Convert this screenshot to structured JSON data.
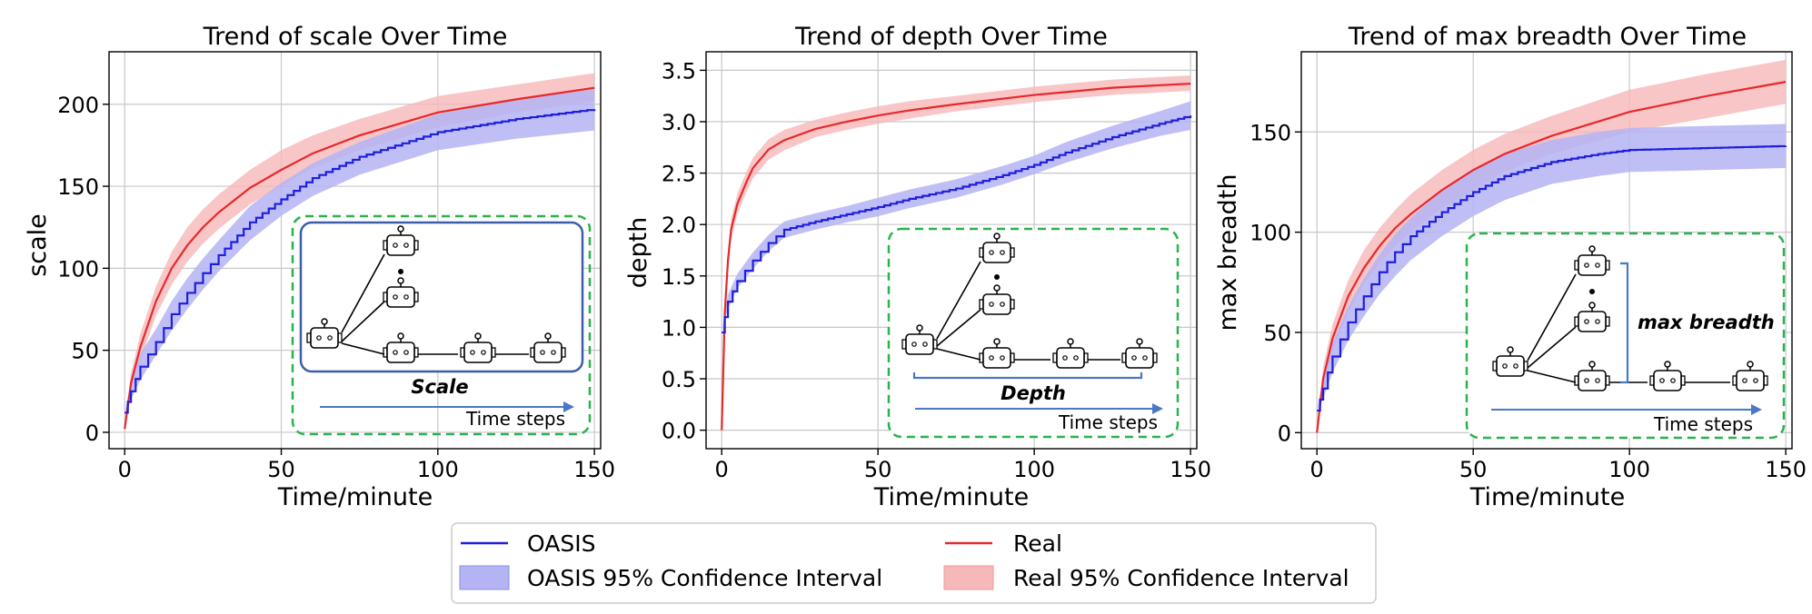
{
  "colors": {
    "oasis": "#1f1fdc",
    "oasis_band": "#b4b4f4",
    "real": "#e8282a",
    "real_band": "#f6b8b9",
    "inset_border": "#2bb24c",
    "inset_box": "#3a5fa8",
    "arrow": "#4a78c6",
    "grid": "#c8c8c8"
  },
  "legend": {
    "oasis": "OASIS",
    "real": "Real",
    "oasis_ci": "OASIS 95% Confidence Interval",
    "real_ci": "Real 95% Confidence Interval"
  },
  "chart_data": [
    {
      "type": "line",
      "title": "Trend of scale Over Time",
      "xlabel": "Time/minute",
      "ylabel": "scale",
      "xlim": [
        -5,
        152
      ],
      "ylim": [
        -10,
        232
      ],
      "xticks": [
        0,
        50,
        100,
        150
      ],
      "yticks": [
        0,
        50,
        100,
        150,
        200
      ],
      "grid": true,
      "series": [
        {
          "name": "OASIS",
          "kind": "step",
          "x": [
            0,
            2,
            5,
            10,
            15,
            20,
            25,
            30,
            40,
            50,
            60,
            75,
            100,
            125,
            150
          ],
          "y": [
            12,
            25,
            40,
            55,
            72,
            85,
            97,
            108,
            128,
            142,
            155,
            168,
            183,
            191,
            197
          ],
          "lower": [
            12,
            20,
            32,
            47,
            62,
            75,
            87,
            98,
            117,
            132,
            144,
            157,
            172,
            179,
            184
          ],
          "upper": [
            12,
            30,
            48,
            63,
            80,
            94,
            106,
            117,
            138,
            152,
            164,
            177,
            194,
            203,
            209
          ]
        },
        {
          "name": "Real",
          "kind": "line",
          "x": [
            0,
            2,
            5,
            10,
            15,
            20,
            25,
            30,
            40,
            50,
            60,
            75,
            100,
            125,
            150
          ],
          "y": [
            2,
            30,
            52,
            80,
            100,
            114,
            125,
            134,
            149,
            160,
            170,
            181,
            195,
            203,
            210
          ],
          "lower": [
            2,
            24,
            44,
            71,
            90,
            104,
            115,
            124,
            139,
            150,
            161,
            172,
            186,
            195,
            202
          ],
          "upper": [
            2,
            36,
            60,
            89,
            110,
            125,
            136,
            145,
            160,
            172,
            181,
            191,
            205,
            212,
            219
          ]
        }
      ],
      "inset": {
        "caption": "Scale",
        "time_label": "Time steps",
        "callout_label": ""
      }
    },
    {
      "type": "line",
      "title": "Trend of depth Over Time",
      "xlabel": "Time/minute",
      "ylabel": "depth",
      "xlim": [
        -5,
        152
      ],
      "ylim": [
        -0.18,
        3.68
      ],
      "xticks": [
        0,
        50,
        100,
        150
      ],
      "yticks": [
        0.0,
        0.5,
        1.0,
        1.5,
        2.0,
        2.5,
        3.0,
        3.5
      ],
      "grid": true,
      "series": [
        {
          "name": "OASIS",
          "kind": "step",
          "x": [
            0,
            2,
            5,
            10,
            15,
            20,
            30,
            40,
            50,
            60,
            75,
            90,
            100,
            110,
            125,
            140,
            150
          ],
          "y": [
            0.95,
            1.25,
            1.45,
            1.65,
            1.82,
            1.95,
            2.03,
            2.1,
            2.17,
            2.25,
            2.35,
            2.48,
            2.58,
            2.7,
            2.85,
            2.98,
            3.06
          ],
          "lower": [
            0.95,
            1.18,
            1.38,
            1.57,
            1.74,
            1.87,
            1.95,
            2.02,
            2.08,
            2.16,
            2.26,
            2.39,
            2.49,
            2.6,
            2.74,
            2.86,
            2.92
          ],
          "upper": [
            0.95,
            1.32,
            1.52,
            1.73,
            1.9,
            2.03,
            2.11,
            2.18,
            2.26,
            2.34,
            2.44,
            2.57,
            2.67,
            2.8,
            2.96,
            3.1,
            3.2
          ]
        },
        {
          "name": "Real",
          "kind": "line",
          "x": [
            0,
            1,
            2,
            3,
            5,
            8,
            10,
            15,
            20,
            30,
            40,
            50,
            60,
            75,
            100,
            125,
            150
          ],
          "y": [
            0.0,
            1.15,
            1.65,
            1.95,
            2.2,
            2.42,
            2.55,
            2.73,
            2.82,
            2.93,
            3.0,
            3.06,
            3.11,
            3.17,
            3.26,
            3.33,
            3.37
          ],
          "lower": [
            0.0,
            1.05,
            1.55,
            1.85,
            2.1,
            2.32,
            2.45,
            2.63,
            2.72,
            2.85,
            2.92,
            2.98,
            3.03,
            3.1,
            3.19,
            3.26,
            3.3
          ],
          "upper": [
            0.0,
            1.25,
            1.75,
            2.05,
            2.3,
            2.52,
            2.65,
            2.83,
            2.92,
            3.02,
            3.09,
            3.15,
            3.2,
            3.25,
            3.34,
            3.41,
            3.45
          ]
        }
      ],
      "inset": {
        "caption": "Depth",
        "time_label": "Time steps",
        "callout_label": ""
      }
    },
    {
      "type": "line",
      "title": "Trend of max breadth Over Time",
      "xlabel": "Time/minute",
      "ylabel": "max breadth",
      "xlim": [
        -5,
        152
      ],
      "ylim": [
        -8,
        190
      ],
      "xticks": [
        0,
        50,
        100,
        150
      ],
      "yticks": [
        0,
        50,
        100,
        150
      ],
      "grid": true,
      "series": [
        {
          "name": "OASIS",
          "kind": "step",
          "x": [
            0,
            2,
            5,
            10,
            15,
            20,
            25,
            30,
            40,
            50,
            60,
            75,
            90,
            100,
            125,
            150
          ],
          "y": [
            11,
            22,
            38,
            55,
            68,
            80,
            90,
            98,
            110,
            120,
            128,
            135,
            139,
            141,
            142,
            143
          ],
          "lower": [
            11,
            17,
            30,
            46,
            58,
            69,
            78,
            86,
            98,
            108,
            116,
            124,
            128,
            130,
            131,
            132
          ],
          "upper": [
            11,
            27,
            45,
            63,
            77,
            89,
            99,
            107,
            121,
            131,
            139,
            146,
            150,
            152,
            153,
            154
          ]
        },
        {
          "name": "Real",
          "kind": "line",
          "x": [
            0,
            2,
            5,
            10,
            15,
            20,
            25,
            30,
            40,
            50,
            60,
            75,
            100,
            125,
            150
          ],
          "y": [
            0,
            27,
            47,
            68,
            82,
            93,
            102,
            109,
            121,
            131,
            139,
            148,
            160,
            168,
            175
          ],
          "lower": [
            0,
            21,
            40,
            60,
            74,
            84,
            93,
            100,
            112,
            121,
            130,
            139,
            150,
            157,
            164
          ],
          "upper": [
            0,
            33,
            54,
            76,
            91,
            102,
            111,
            119,
            131,
            141,
            149,
            158,
            171,
            179,
            186
          ]
        }
      ],
      "inset": {
        "caption": "",
        "time_label": "Time steps",
        "callout_label": "max breadth"
      }
    }
  ]
}
